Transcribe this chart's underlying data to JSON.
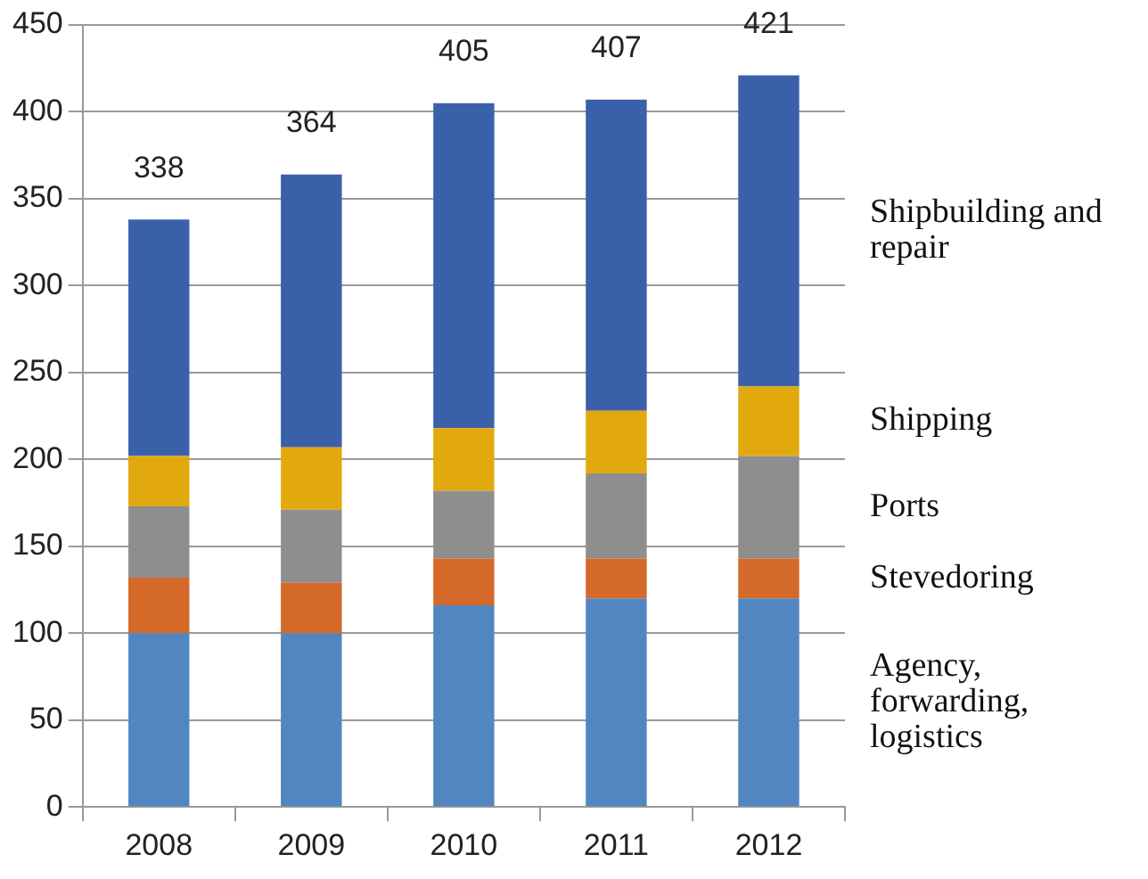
{
  "chart_data": {
    "type": "bar",
    "stacked": true,
    "categories": [
      "2008",
      "2009",
      "2010",
      "2011",
      "2012"
    ],
    "series": [
      {
        "name": "Agency, forwarding, logistics",
        "color": "#5286c0",
        "values": [
          100,
          100,
          116,
          120,
          120
        ]
      },
      {
        "name": "Stevedoring",
        "color": "#d4692a",
        "values": [
          32,
          29,
          27,
          23,
          23
        ]
      },
      {
        "name": "Ports",
        "color": "#8e8e8e",
        "values": [
          41,
          42,
          39,
          49,
          59
        ]
      },
      {
        "name": "Shipping",
        "color": "#e2a90e",
        "values": [
          29,
          36,
          36,
          36,
          40
        ]
      },
      {
        "name": "Shipbuilding and repair",
        "color": "#3b60aa",
        "values": [
          136,
          157,
          187,
          179,
          179
        ]
      }
    ],
    "totals": [
      "338",
      "364",
      "405",
      "407",
      "421"
    ],
    "ylim": [
      0,
      450
    ],
    "yticks": [
      0,
      50,
      100,
      150,
      200,
      250,
      300,
      350,
      400,
      450
    ],
    "grid": "y",
    "legend": false
  }
}
